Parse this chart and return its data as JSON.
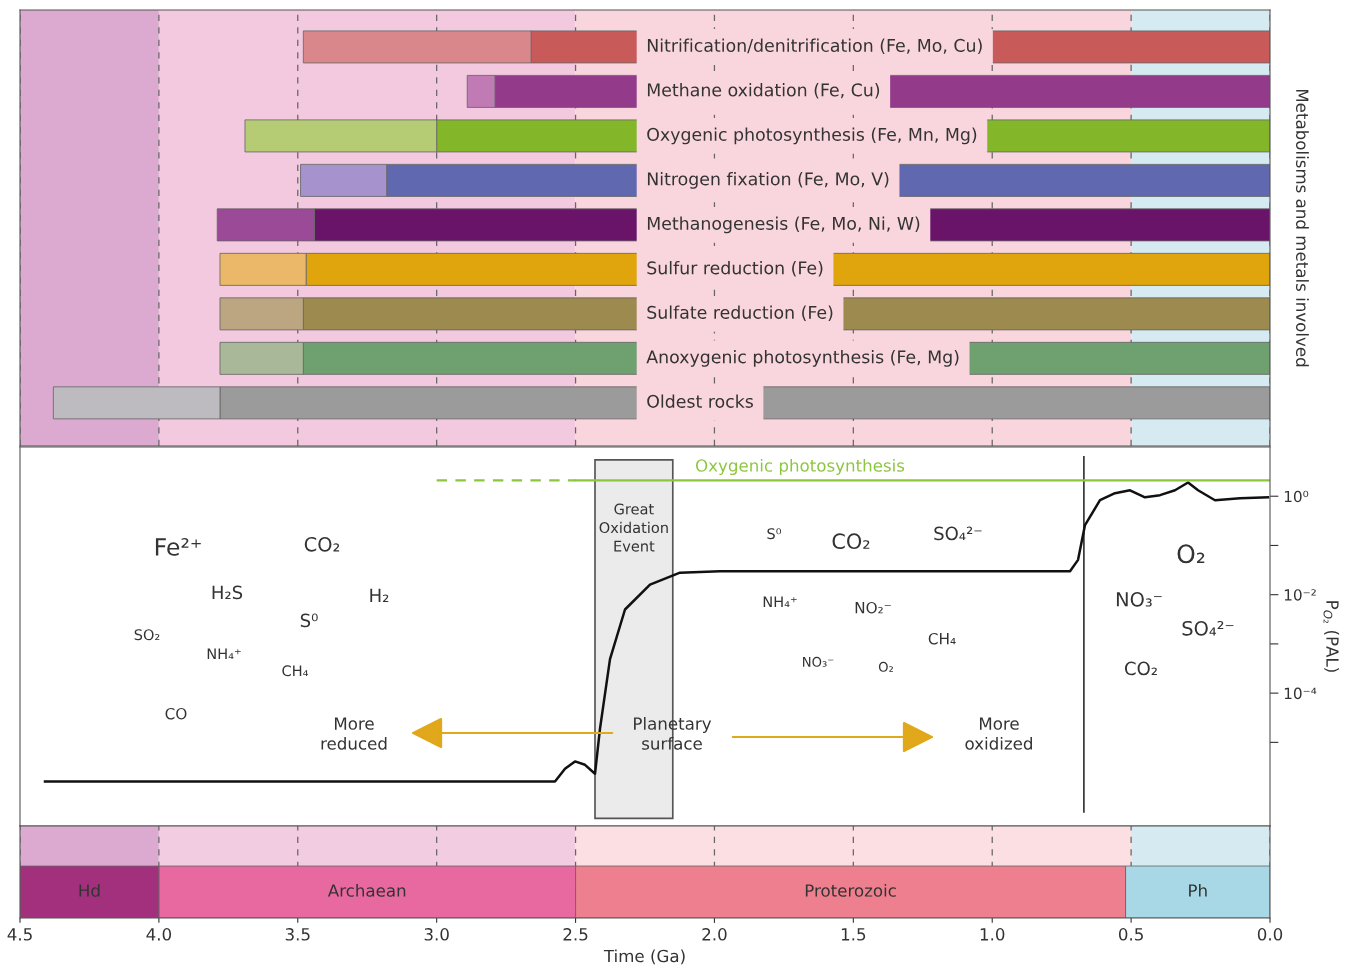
{
  "chart_data": [
    {
      "type": "bar",
      "orientation": "horizontal",
      "stacked": true,
      "xlim": [
        4.5,
        0
      ],
      "tick_labels": false,
      "grid": "x",
      "ylabel": "Metabolisms and metals involved",
      "xticks": [
        4.5,
        4.0,
        3.5,
        3.0,
        2.5,
        2.0,
        1.5,
        1.0,
        0.5,
        0.0
      ],
      "categories": [
        "Nitrification/denitrification (Fe, Mo, Cu)",
        "Methane oxidation (Fe, Cu)",
        "Oxygenic photosynthesis (Fe, Mn, Mg)",
        "Nitrogen fixation (Fe, Mo, V)",
        "Methanogenesis (Fe, Mo, Ni, W)",
        "Sulfur reduction (Fe)",
        "Sulfate reduction (Fe)",
        "Anoxygenic photosynthesis (Fe, Mg)",
        "Oldest rocks"
      ],
      "series": [
        {
          "values": [
            2.66,
            2.79,
            3.0,
            3.18,
            3.44,
            3.47,
            3.48,
            3.48,
            3.78
          ],
          "colors": [
            "#c85a5a",
            "#933a8b",
            "#84b62a",
            "#6068b0",
            "#6a1469",
            "#e0a40c",
            "#9c8a4e",
            "#6ea070",
            "#9b9b9b"
          ]
        },
        {
          "values": [
            0.82,
            0.1,
            0.69,
            0.31,
            0.35,
            0.31,
            0.3,
            0.3,
            0.6
          ],
          "colors": [
            "#d9878a",
            "#c07ab4",
            "#b6cc74",
            "#a692cc",
            "#9a4a96",
            "#eab868",
            "#bca682",
            "#a8b898",
            "#bebbc0"
          ]
        }
      ],
      "bands": [
        {
          "axis": "x",
          "from": 4.5,
          "to": 4.0,
          "color": "#dcaad0"
        },
        {
          "axis": "x",
          "from": 4.0,
          "to": 2.5,
          "color": "#f2c9df"
        },
        {
          "axis": "x",
          "from": 2.5,
          "to": 0.5,
          "color": "#f9d6dd"
        },
        {
          "axis": "x",
          "from": 0.5,
          "to": 0.0,
          "color": "#d5ebf1"
        }
      ]
    },
    {
      "type": "line",
      "xlim": [
        4.5,
        0
      ],
      "ylim": [
        2e-07,
        10
      ],
      "log": "y",
      "tick_labels": "y",
      "ylabel": "P$_{O₂}$ (PAL)",
      "yticks": [
        {
          "value": 1,
          "label": "10⁰"
        },
        {
          "value": 0.1,
          "label": null
        },
        {
          "value": 0.01,
          "label": "10⁻²"
        },
        {
          "value": 0.001,
          "label": null
        },
        {
          "value": 0.0001,
          "label": "10⁻⁴"
        },
        {
          "value": 1e-05,
          "label": null
        }
      ],
      "series": [
        {
          "color": "#111111",
          "line_style": "solid",
          "x": [
            4.41,
            2.574,
            2.538,
            2.502,
            2.466,
            2.43,
            2.412,
            2.376,
            2.322,
            2.232,
            2.124,
            1.98,
            0.72,
            0.691,
            0.666,
            0.612,
            0.558,
            0.504,
            0.45,
            0.396,
            0.342,
            0.295,
            0.259,
            0.198,
            0.108,
            0.007
          ],
          "values": [
            1.6e-06,
            1.6e-06,
            2.9e-06,
            4.1e-06,
            3.5e-06,
            2.3e-06,
            1.9e-05,
            0.00049,
            0.005,
            0.016,
            0.028,
            0.03,
            0.03,
            0.051,
            0.26,
            0.83,
            1.15,
            1.32,
            0.95,
            1.05,
            1.32,
            1.9,
            1.32,
            0.83,
            0.91,
            0.95
          ]
        },
        {
          "color": "#8cc63f",
          "line_style": "dashed",
          "x": [
            3.0,
            2.5
          ],
          "values": [
            2.1,
            2.1
          ]
        },
        {
          "name": "Oxygenic photosynthesis",
          "color": "#8cc63f",
          "line_style": "solid",
          "x": [
            2.5,
            0.0
          ],
          "values": [
            2.1,
            2.1
          ]
        }
      ],
      "bands": [
        {
          "axis": "x",
          "from": 2.43,
          "to": 2.15,
          "label": "Great\nOxidation\nEvent",
          "color": "#ebebeb"
        }
      ],
      "ref_lines": [
        {
          "axis": "x",
          "value": 0.67,
          "color": "#333333"
        }
      ],
      "annotations": [
        "Fe²⁺",
        "CO₂",
        "H₂S",
        "H₂",
        "S⁰",
        "SO₂",
        "NH₄⁺",
        "CH₄",
        "CO",
        "More\nreduced",
        "Planetary\nsurface",
        "S⁰",
        "CO₂",
        "SO₄²⁻",
        "NH₄⁺",
        "NO₂⁻",
        "CH₄",
        "NO₃⁻",
        "O₂",
        "More\noxidized",
        "O₂",
        "NO₃⁻",
        "SO₄²⁻",
        "CO₂"
      ]
    },
    {
      "type": "bar",
      "orientation": "horizontal",
      "stacked": true,
      "xlim": [
        4.5,
        0
      ],
      "tick_labels": "x",
      "grid": "x",
      "xlabel": "Time (Ga)",
      "categories": [
        null
      ],
      "xticks": [
        {
          "value": 4.5,
          "label": "4.5"
        },
        {
          "value": 4.0,
          "label": "4.0"
        },
        {
          "value": 3.5,
          "label": "3.5"
        },
        {
          "value": 3.0,
          "label": "3.0"
        },
        {
          "value": 2.5,
          "label": "2.5"
        },
        {
          "value": 2.0,
          "label": "2.0"
        },
        {
          "value": 1.5,
          "label": "1.5"
        },
        {
          "value": 1.0,
          "label": "1.0"
        },
        {
          "value": 0.5,
          "label": "0.5"
        },
        {
          "value": 0.0,
          "label": "0.0"
        }
      ],
      "series": [
        {
          "name": "Ph",
          "color": "#a8d8e6",
          "values": [
            0.52
          ]
        },
        {
          "name": "Proterozoic",
          "color": "#ee7f8f",
          "values": [
            1.98
          ]
        },
        {
          "name": "Archaean",
          "color": "#e8699f",
          "values": [
            1.5
          ]
        },
        {
          "name": "Hd",
          "color": "#a3307c",
          "values": [
            0.5
          ]
        }
      ],
      "bands": [
        {
          "axis": "x",
          "from": 4.5,
          "to": 4.0,
          "color": "#dcaad0"
        },
        {
          "axis": "x",
          "from": 4.0,
          "to": 2.5,
          "color": "#f2cde2"
        },
        {
          "axis": "x",
          "from": 2.5,
          "to": 0.5,
          "color": "#fbdfe2"
        },
        {
          "axis": "x",
          "from": 0.5,
          "to": 0.0,
          "color": "#d5ebf1"
        }
      ]
    }
  ]
}
